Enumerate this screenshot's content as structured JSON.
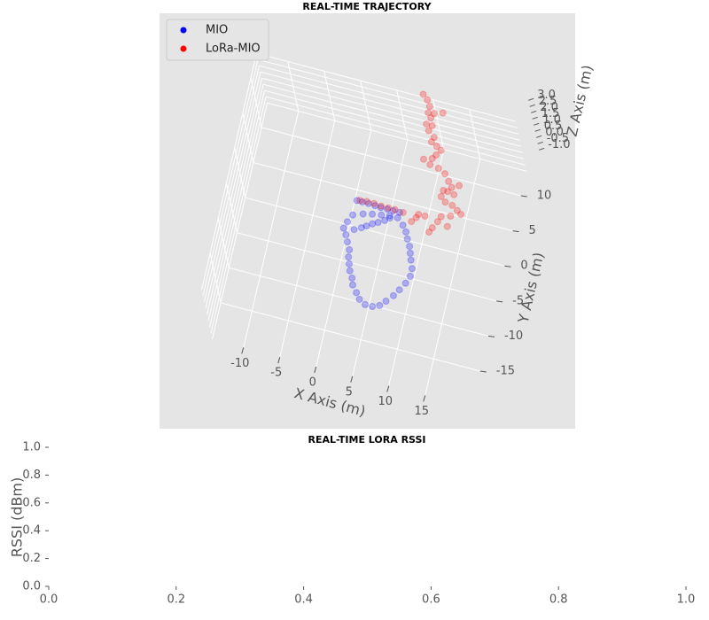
{
  "chart_data": [
    {
      "type": "scatter3d",
      "title": "REAL-TIME TRAJECTORY",
      "xlabel": "X Axis (m)",
      "ylabel": "Y Axis (m)",
      "zlabel": "Z Axis (m)",
      "xlim": [
        -14.3,
        21.4
      ],
      "ylim": [
        -20.2,
        13.5
      ],
      "zlim": [
        -1,
        3
      ],
      "xticks": [
        -10,
        -5,
        0,
        5,
        10,
        15
      ],
      "yticks": [
        -15,
        -10,
        -5,
        0,
        5,
        10
      ],
      "zticks": [
        {
          "value": -1,
          "label": "-1.0"
        },
        -0.5,
        {
          "value": 0,
          "label": "0.0"
        },
        0.5,
        {
          "value": 1,
          "label": "1.0"
        },
        1.5,
        {
          "value": 2,
          "label": "2.0"
        },
        2.5,
        {
          "value": 3,
          "label": "3.0"
        }
      ],
      "grid": true,
      "legend": "upper left",
      "series": [
        {
          "name": "MIO",
          "color": "#0000ff",
          "alpha": 0.25,
          "x": [
            1.0,
            1.75,
            2.6,
            3.5,
            4.3,
            5.2,
            6.0,
            6.9,
            0.9,
            0.4,
            0.1,
            0.6,
            1.0,
            1.5,
            1.6,
            1.9,
            2.2,
            2.7,
            3.0,
            3.7,
            4.3,
            5.2,
            6.2,
            7.1,
            7.8,
            8.6,
            9.2,
            9.8,
            10.2,
            10.2,
            9.8,
            9.5,
            9.2,
            8.7,
            8.3,
            7.7,
            6.8,
            5.7,
            4.6,
            3.4,
            2.2,
            1.5,
            2.4,
            3.0,
            3.7,
            4.4,
            5.2,
            5.8
          ],
          "y": [
            2.0,
            2.0,
            2.0,
            1.95,
            1.9,
            1.9,
            1.9,
            1.9,
            -0.1,
            -1.2,
            -2.2,
            -3.0,
            -3.9,
            -4.9,
            -5.9,
            -6.8,
            -7.7,
            -8.6,
            -9.5,
            -10.4,
            -11.2,
            -11.7,
            -11.7,
            -11.3,
            -10.5,
            -9.5,
            -8.5,
            -7.4,
            -6.3,
            -5.2,
            -4.1,
            -3.2,
            -2.3,
            -1.4,
            -0.5,
            0.3,
            1.1,
            1.1,
            0.9,
            0.7,
            0.4,
            -2.0,
            -1.5,
            -1.1,
            -0.6,
            -0.2,
            0.3,
            0.8
          ],
          "z": [
            0,
            0,
            0,
            0,
            0,
            0,
            0,
            0,
            0,
            0,
            0,
            0,
            0,
            0,
            0,
            0,
            0,
            0,
            0,
            0,
            0,
            0,
            0,
            0,
            0,
            0,
            0,
            0,
            0,
            0,
            0,
            0,
            0,
            0,
            0,
            0,
            0,
            0,
            0,
            0,
            0,
            0,
            0,
            0,
            0,
            0,
            0,
            0
          ]
        },
        {
          "name": "LoRa-MIO",
          "color": "#ff0000",
          "alpha": 0.25,
          "x": [
            6.4,
            7.1,
            7.6,
            7.6,
            8.1,
            7.7,
            8.5,
            8.2,
            9.1,
            8.9,
            9.7,
            10.4,
            9.9,
            9.5,
            8.4,
            9.4,
            10.6,
            11.6,
            12.3,
            12.9,
            12.5,
            13.8,
            13.4,
            11.9,
            11.8,
            12.5,
            13.5,
            14.3,
            14.9,
            13.6,
            12.4,
            12.1,
            13.5,
            11.6,
            11.3,
            10.3,
            9.2,
            8.7,
            9.4,
            7.35,
            6.2,
            5.3,
            4.3,
            3.3,
            2.3,
            1.4,
            9.5,
            8.4
          ],
          "y": [
            18.6,
            18.0,
            17.2,
            16.3,
            15.7,
            14.7,
            14.7,
            13.9,
            13.2,
            12.5,
            12.1,
            11.7,
            10.9,
            10.3,
            9.9,
            9.4,
            9.2,
            8.7,
            7.8,
            7.1,
            6.4,
            7.6,
            6.2,
            6.4,
            5.5,
            4.9,
            4.7,
            4.2,
            3.8,
            3.2,
            2.8,
            2.0,
            1.7,
            1.0,
            0.3,
            2.3,
            1.8,
            1.1,
            2.3,
            2.0,
            2.1,
            2.1,
            2.1,
            2.2,
            2.2,
            2.1,
            16.8,
            16.4
          ],
          "z": [
            0,
            0,
            0,
            0,
            0,
            0,
            0,
            0,
            0,
            0,
            0,
            0,
            0,
            0,
            0,
            0,
            0,
            0,
            0,
            0,
            0,
            0,
            0,
            0,
            0,
            0,
            0,
            0,
            0,
            0,
            0,
            0,
            0,
            0,
            0,
            0,
            0,
            0,
            0,
            0,
            0,
            0,
            0,
            0,
            0,
            0,
            0,
            0
          ]
        }
      ]
    },
    {
      "type": "line",
      "title": "REAL-TIME LORA RSSI",
      "ylabel": "RSSI (dBm)",
      "xlim": [
        0,
        1
      ],
      "ylim": [
        0,
        1
      ],
      "xticks": [
        {
          "value": 0,
          "label": "0.0"
        },
        0.2,
        0.4,
        0.6,
        0.8,
        {
          "value": 1,
          "label": "1.0"
        }
      ],
      "yticks": [
        {
          "value": 0,
          "label": "0.0"
        },
        0.2,
        0.4,
        0.6,
        0.8,
        {
          "value": 1,
          "label": "1.0"
        }
      ]
    }
  ]
}
